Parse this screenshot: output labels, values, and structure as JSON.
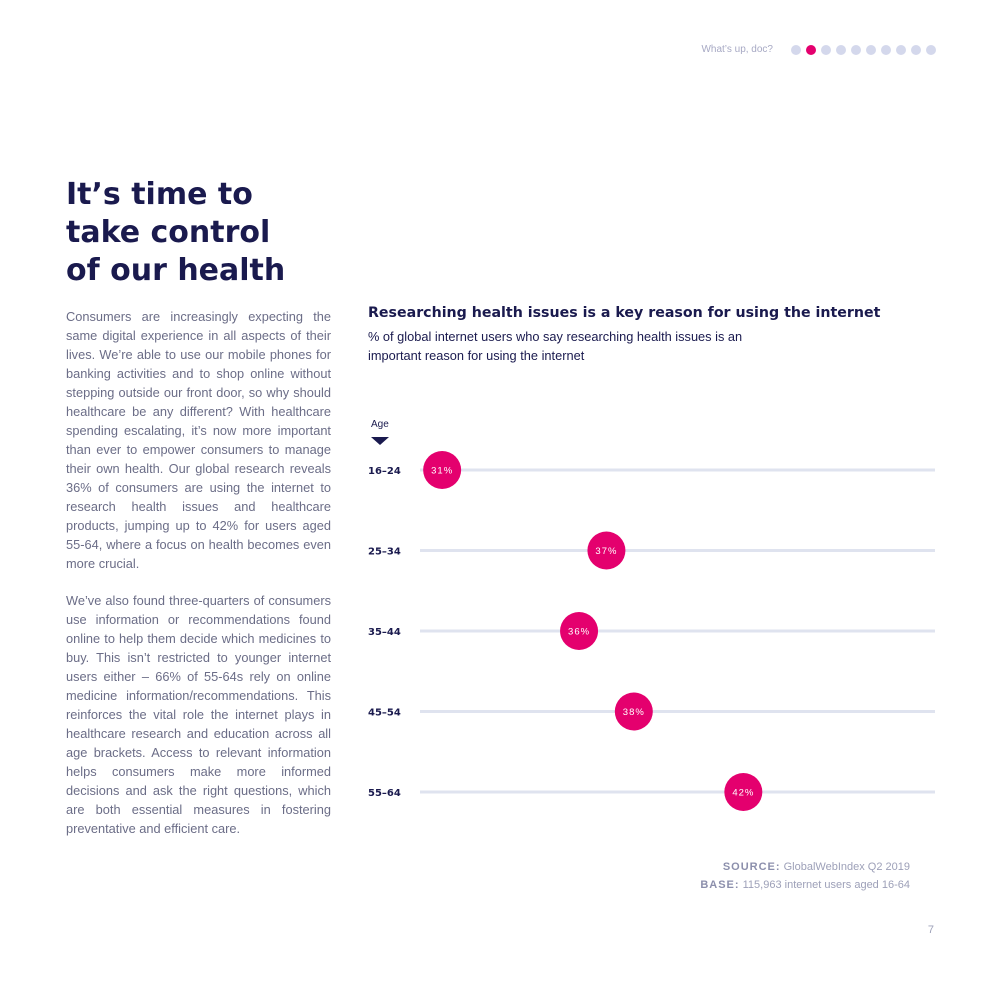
{
  "header": {
    "title": "What’s up, doc?",
    "dot_count": 10,
    "active_dot": 1
  },
  "page": {
    "title": "It’s time to\ntake control\nof our health",
    "paragraphs": [
      "Consumers are increasingly expecting the same digital experience in all aspects of their lives. We’re able to use our mobile phones for banking activities and to shop online without stepping outside our front door, so why should healthcare be any different? With healthcare spending escalating, it’s now more important than ever to empower consumers to manage their own health. Our global research reveals 36% of consumers are using the internet to research health issues and healthcare products, jumping up to 42% for users aged 55-64, where a focus on health becomes even more crucial.",
      "We’ve also found three-quarters of consumers use information or recommendations found online to help them decide which medicines to buy. This isn’t restricted to younger internet users either – 66% of 55-64s rely on online medicine information/recommendations. This reinforces the vital role the internet plays in healthcare research and education across all age brackets. Access to relevant information helps consumers make more informed decisions and ask the right questions, which are both essential measures in fostering preventative and efficient care."
    ],
    "page_number": "7"
  },
  "chart_data": {
    "type": "scatter",
    "title": "Researching health issues is a key reason for using the internet",
    "subtitle": "% of global internet users who say researching health issues is an important reason for using the internet",
    "axis_label": "Age",
    "categories": [
      "16-24",
      "25-34",
      "35-44",
      "45-54",
      "55-64"
    ],
    "values": [
      31,
      37,
      36,
      38,
      42
    ],
    "value_suffix": "%",
    "xlim": [
      28,
      49
    ],
    "colors": {
      "point": "#e4006e",
      "track": "#dfe3ef",
      "text": "#1a1a4e",
      "arrow": "#1a1a4e"
    }
  },
  "source": {
    "source_label": "SOURCE:",
    "source_text": "GlobalWebIndex Q2 2019",
    "base_label": "BASE:",
    "base_text": "115,963 internet users aged 16-64"
  }
}
